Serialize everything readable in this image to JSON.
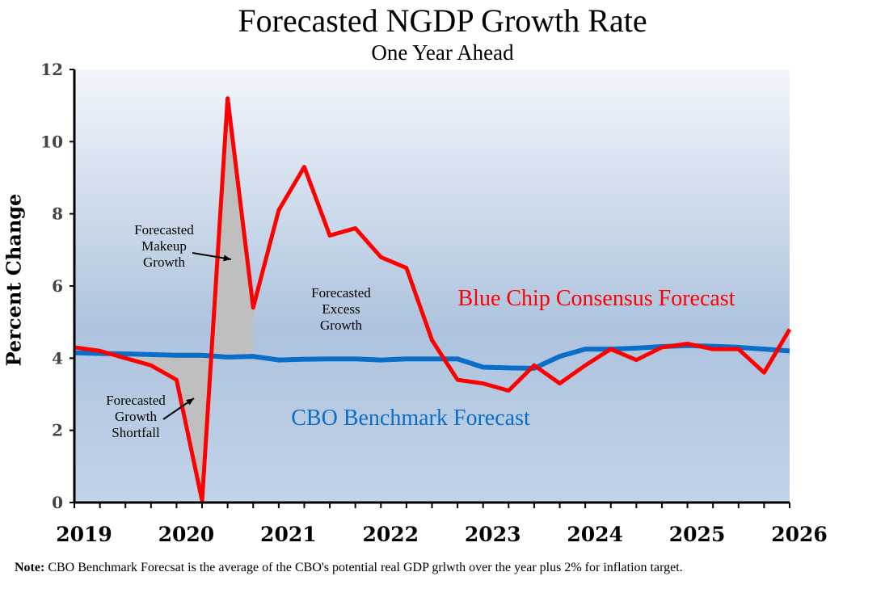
{
  "chart_data": {
    "type": "line",
    "title": "Forecasted NGDP Growth Rate",
    "subtitle": "One Year Ahead",
    "ylabel": "Percent Change",
    "xlabel": "",
    "xlim": [
      2019,
      2026
    ],
    "ylim": [
      0,
      12
    ],
    "yticks": [
      0,
      2,
      4,
      6,
      8,
      10,
      12
    ],
    "xticks": [
      "2019",
      "2020",
      "2021",
      "2022",
      "2023",
      "2024",
      "2025",
      "2026"
    ],
    "grid": false,
    "x": [
      2019.0,
      2019.25,
      2019.5,
      2019.75,
      2020.0,
      2020.25,
      2020.5,
      2020.75,
      2021.0,
      2021.25,
      2021.5,
      2021.75,
      2022.0,
      2022.25,
      2022.5,
      2022.75,
      2023.0,
      2023.25,
      2023.5,
      2023.75,
      2024.0,
      2024.25,
      2024.5,
      2024.75,
      2025.0,
      2025.25,
      2025.5,
      2025.75,
      2026.0
    ],
    "series": [
      {
        "name": "Blue Chip Consensus Forecast",
        "color": "#ff0000",
        "values": [
          4.3,
          4.2,
          4.0,
          3.8,
          3.4,
          0.05,
          11.2,
          5.4,
          8.1,
          9.3,
          7.4,
          7.6,
          6.8,
          6.5,
          4.5,
          3.4,
          3.3,
          3.1,
          3.8,
          3.3,
          3.8,
          4.25,
          3.95,
          4.3,
          4.4,
          4.25,
          4.25,
          3.6,
          4.8
        ]
      },
      {
        "name": "CBO Benchmark Forecast",
        "color": "#0a6ec8",
        "values": [
          4.15,
          4.13,
          4.12,
          4.1,
          4.08,
          4.08,
          4.03,
          4.05,
          3.95,
          3.97,
          3.98,
          3.98,
          3.95,
          3.98,
          3.98,
          3.98,
          3.75,
          3.73,
          3.72,
          4.05,
          4.25,
          4.25,
          4.28,
          4.32,
          4.35,
          4.33,
          4.3,
          4.25,
          4.2
        ]
      }
    ],
    "annotations": [
      {
        "text": [
          "Forecasted",
          "Makeup",
          "Growth"
        ]
      },
      {
        "text": [
          "Forecasted",
          "Excess",
          "Growth"
        ]
      },
      {
        "text": [
          "Forecasted",
          "Growth",
          "Shortfall"
        ]
      }
    ],
    "shaded_color": "#bfbfbf"
  },
  "note": {
    "label": "Note:",
    "text": " CBO Benchmark Forecsat is the average of the CBO's potential real GDP grlwth over the year plus 2% for inflation target."
  }
}
